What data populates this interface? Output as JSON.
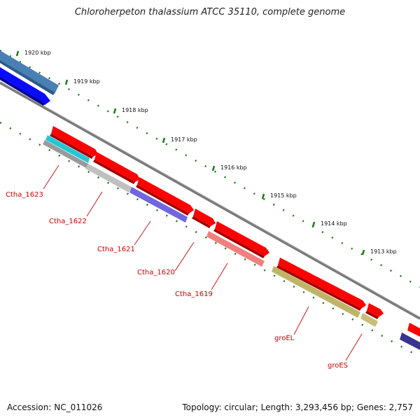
{
  "title": "Chloroherpeton thalassium ATCC 35110, complete genome",
  "footer": {
    "accession": "Accession: NC_011026",
    "summary": "Topology: circular; Length: 3,293,456 bp; Genes: 2,757"
  },
  "ticks": [
    "1920 kbp",
    "1919 kbp",
    "1918 kbp",
    "1917 kbp",
    "1916 kbp",
    "1915 kbp",
    "1914 kbp",
    "1913 kbp"
  ],
  "gene_labels": [
    "Ctha_1623",
    "Ctha_1622",
    "Ctha_1621",
    "Ctha_1620",
    "Ctha_1619",
    "groEL",
    "groES"
  ],
  "colors": {
    "backbone": "#7a7a7a",
    "tick_dots": "#1e7a1e",
    "gene_red": "#ff0000",
    "label_red": "#cc0000",
    "steelblue": "#4a7fb5",
    "blue": "#0a0aff",
    "cyan": "#22c8d8",
    "gray": "#b8b8b8",
    "slateblue": "#6a5ed8",
    "salmon": "#f08080",
    "khaki": "#c0b66a",
    "navy": "#3a3490"
  }
}
